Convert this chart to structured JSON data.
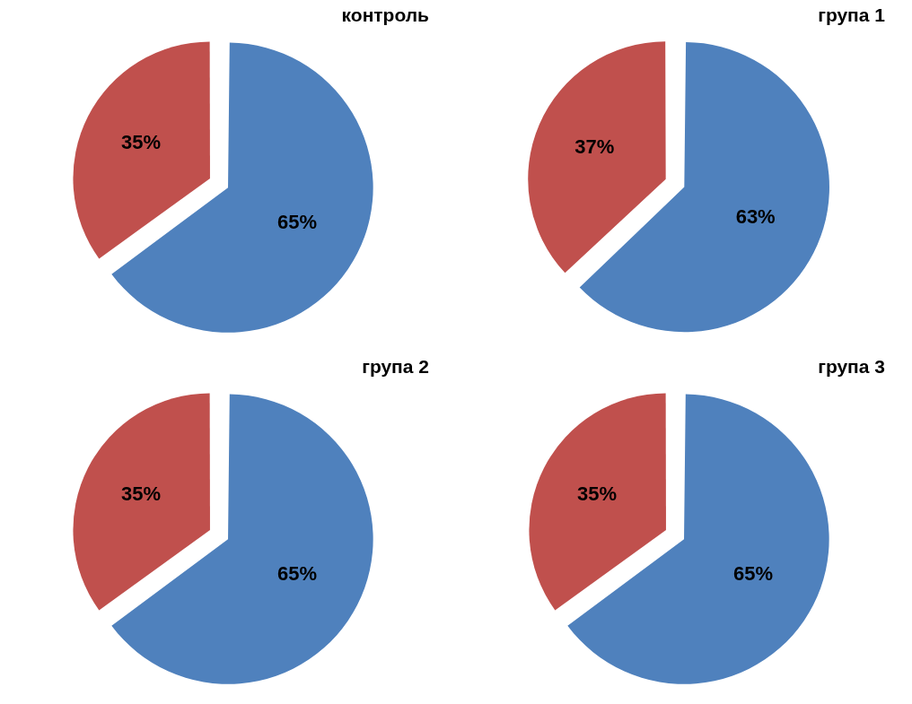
{
  "chart_data": [
    {
      "type": "pie",
      "title": "контроль",
      "categories": [
        null,
        null
      ],
      "values": [
        65,
        35
      ],
      "value_labels": [
        "65%",
        "35%"
      ],
      "colors": [
        "#4f81bd",
        "#c0504d"
      ],
      "legend": false
    },
    {
      "type": "pie",
      "title": "група 1",
      "categories": [
        null,
        null
      ],
      "values": [
        63,
        37
      ],
      "value_labels": [
        "63%",
        "37%"
      ],
      "colors": [
        "#4f81bd",
        "#c0504d"
      ],
      "legend": false
    },
    {
      "type": "pie",
      "title": "група 2",
      "categories": [
        null,
        null
      ],
      "values": [
        65,
        35
      ],
      "value_labels": [
        "65%",
        "35%"
      ],
      "colors": [
        "#4f81bd",
        "#c0504d"
      ],
      "legend": false
    },
    {
      "type": "pie",
      "title": "група 3",
      "categories": [
        null,
        null
      ],
      "values": [
        65,
        35
      ],
      "value_labels": [
        "65%",
        "35%"
      ],
      "colors": [
        "#4f81bd",
        "#c0504d"
      ],
      "legend": false
    }
  ]
}
